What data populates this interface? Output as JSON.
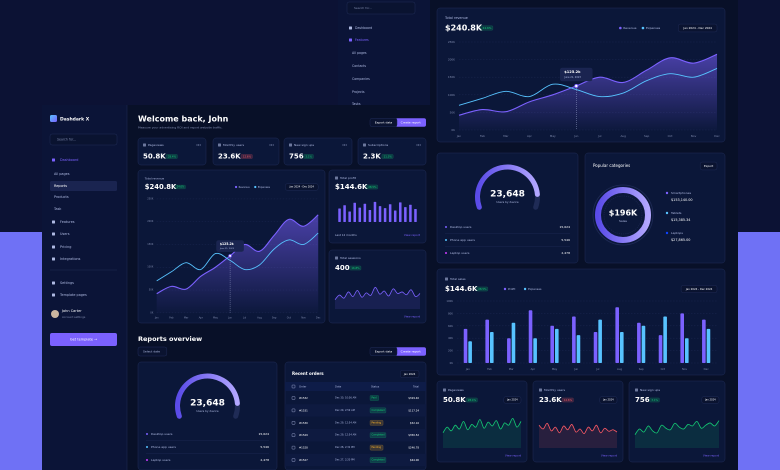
{
  "back_sidebar": {
    "search": "Search for...",
    "menu": [
      "Dashboard",
      "Features",
      "All pages",
      "Contacts",
      "Companies",
      "Projects",
      "Tasks"
    ]
  },
  "sidebar": {
    "brand": "Dashdark X",
    "search": "Search for...",
    "menu": [
      "Dashboard",
      "All pages",
      "Reports",
      "Products",
      "Task",
      "Features",
      "Users",
      "Pricing",
      "Integrations",
      "Settings",
      "Template pages"
    ],
    "user": {
      "name": "John Carter",
      "role": "Account settings"
    },
    "cta": "Get template →"
  },
  "header": {
    "title": "Welcome back, John",
    "subtitle": "Measure your advertising ROI and report website traffic.",
    "export": "Export data",
    "create": "Create report"
  },
  "filters": {
    "month": "Jan 2024"
  },
  "links": {
    "view": "View report"
  },
  "stats": [
    {
      "label": "Pageviews",
      "value": "50.8K",
      "change": "28.4%",
      "direction": "up",
      "trend": {
        "type": "line",
        "color": "#14ca74",
        "ylim": [
          0,
          100
        ],
        "values": [
          40,
          55,
          45,
          60,
          50,
          70,
          48,
          62,
          55,
          75,
          52,
          68,
          58,
          72,
          50,
          66,
          60,
          78,
          55,
          70
        ]
      }
    },
    {
      "label": "Monthly users",
      "value": "23.6K",
      "change": "12.6%",
      "direction": "down",
      "trend": {
        "type": "line",
        "color": "#ff5a65",
        "ylim": [
          0,
          100
        ],
        "values": [
          60,
          50,
          65,
          45,
          55,
          40,
          58,
          48,
          62,
          42,
          50,
          38,
          55,
          45,
          60,
          40,
          52,
          44,
          48,
          42
        ]
      }
    },
    {
      "label": "New sign ups",
      "value": "756",
      "change": "3.1%",
      "direction": "up",
      "trend": {
        "type": "line",
        "color": "#14ca74",
        "ylim": [
          0,
          100
        ],
        "values": [
          35,
          50,
          42,
          58,
          45,
          40,
          60,
          52,
          48,
          65,
          55,
          50,
          62,
          58,
          70,
          52,
          60,
          66,
          58,
          72
        ]
      }
    },
    {
      "label": "Subscriptions",
      "value": "2.3K",
      "change": "11.3%",
      "direction": "up"
    }
  ],
  "revenue": {
    "title": "Total revenue",
    "value": "$240.8K",
    "change": "24.6%",
    "range": "Jan 2024 - Dec 2024",
    "tooltip": {
      "value": "$125.2k",
      "date": "June 21, 2023"
    },
    "chart": {
      "type": "line",
      "categories": [
        "Jan",
        "Feb",
        "Mar",
        "Apr",
        "May",
        "Jun",
        "Jul",
        "Aug",
        "Sep",
        "Oct",
        "Nov",
        "Dec"
      ],
      "series": [
        {
          "name": "Revenue",
          "color": "#7b61ff",
          "values": [
            42,
            58,
            52,
            80,
            100,
            125,
            150,
            135,
            170,
            205,
            190,
            215
          ]
        },
        {
          "name": "Expenses",
          "color": "#57c3ff",
          "values": [
            70,
            90,
            110,
            95,
            130,
            115,
            95,
            105,
            140,
            160,
            150,
            175
          ]
        }
      ],
      "ylim": [
        0,
        250
      ],
      "yticks": [
        {
          "value": 0,
          "label": "0K"
        },
        {
          "value": 50,
          "label": "50K"
        },
        {
          "value": 100,
          "label": "100K"
        },
        {
          "value": 150,
          "label": "150K"
        },
        {
          "value": 200,
          "label": "200K"
        },
        {
          "value": 250,
          "label": "250K"
        }
      ],
      "grid": true
    }
  },
  "profit": {
    "title": "Total profit",
    "value": "$144.6K",
    "change": "28.5%",
    "period": "Last 12 months",
    "chart": {
      "type": "bar",
      "color": "#7b61ff",
      "ylim": [
        0,
        50
      ],
      "values": [
        28,
        35,
        22,
        40,
        30,
        38,
        25,
        42,
        33,
        29,
        37,
        24,
        41,
        31,
        36,
        27
      ]
    }
  },
  "sessions": {
    "title": "Total sessions",
    "value": "400",
    "change": "16.8%",
    "chart": {
      "type": "line",
      "color": "#7b61ff",
      "ylim": [
        0,
        100
      ],
      "values": [
        30,
        45,
        35,
        55,
        40,
        60,
        38,
        52,
        44,
        70,
        48,
        58,
        42,
        65,
        50,
        55,
        46,
        62,
        40,
        50
      ]
    }
  },
  "reports": {
    "title": "Reports overview",
    "date": "Select date"
  },
  "devices": {
    "total": "23,648",
    "caption": "Users by device",
    "rows": [
      {
        "label": "Desktop users",
        "value": "15,624",
        "color": "#7b61ff"
      },
      {
        "label": "Phone app users",
        "value": "5,546",
        "color": "#57c3ff"
      },
      {
        "label": "Laptop users",
        "value": "2,478",
        "color": "#cb3cff"
      }
    ]
  },
  "orders": {
    "title": "Recent orders",
    "columns": [
      "Order",
      "Date",
      "Status",
      "Total"
    ],
    "rows": [
      {
        "order": "#1532",
        "date": "Dec 30, 10:06 AM",
        "status": "Paid",
        "tone": "green",
        "total": "$329.40"
      },
      {
        "order": "#1531",
        "date": "Dec 29, 2:59 AM",
        "status": "Completed",
        "tone": "green",
        "total": "$117.24"
      },
      {
        "order": "#1530",
        "date": "Dec 29, 12:54 AM",
        "status": "Pending",
        "tone": "yellow",
        "total": "$52.16"
      },
      {
        "order": "#1529",
        "date": "Dec 29, 12:54 AM",
        "status": "Completed",
        "tone": "green",
        "total": "$350.52"
      },
      {
        "order": "#1528",
        "date": "Dec 28, 2:32 PM",
        "status": "Pending",
        "tone": "yellow",
        "total": "$246.78"
      },
      {
        "order": "#1527",
        "date": "Dec 27, 2:20 PM",
        "status": "Completed",
        "tone": "green",
        "total": "$64.00"
      }
    ]
  },
  "categories": {
    "title": "Popular categories",
    "export": "Export",
    "total": "$196K",
    "caption": "Sales",
    "items": [
      {
        "label": "Smartphones",
        "value": "$153,140.00",
        "color": "#7b61ff"
      },
      {
        "label": "Tablets",
        "value": "$15,385.34",
        "color": "#57c3ff"
      },
      {
        "label": "Laptops",
        "value": "$27,865.00",
        "color": "#0e43fb"
      }
    ]
  },
  "sales": {
    "title": "Total sales",
    "value": "$144.6K",
    "change": "28.5%",
    "chart": {
      "type": "bar",
      "categories": [
        "Jan",
        "Feb",
        "Mar",
        "Apr",
        "May",
        "Jun",
        "Jul",
        "Aug",
        "Sep",
        "Oct",
        "Nov",
        "Dec"
      ],
      "series": [
        {
          "name": "Profit",
          "color": "#7b61ff",
          "values": [
            55,
            70,
            40,
            85,
            60,
            75,
            50,
            90,
            65,
            45,
            80,
            70
          ]
        },
        {
          "name": "Expenses",
          "color": "#57c3ff",
          "values": [
            35,
            50,
            65,
            40,
            55,
            45,
            70,
            50,
            60,
            75,
            40,
            55
          ]
        }
      ],
      "ylim": [
        0,
        100
      ],
      "yticks": [
        {
          "value": 0,
          "label": "0K"
        },
        {
          "value": 20,
          "label": "20K"
        },
        {
          "value": 40,
          "label": "40K"
        },
        {
          "value": 60,
          "label": "60K"
        },
        {
          "value": 80,
          "label": "80K"
        },
        {
          "value": 100,
          "label": "100K"
        }
      ],
      "grid": true
    }
  }
}
